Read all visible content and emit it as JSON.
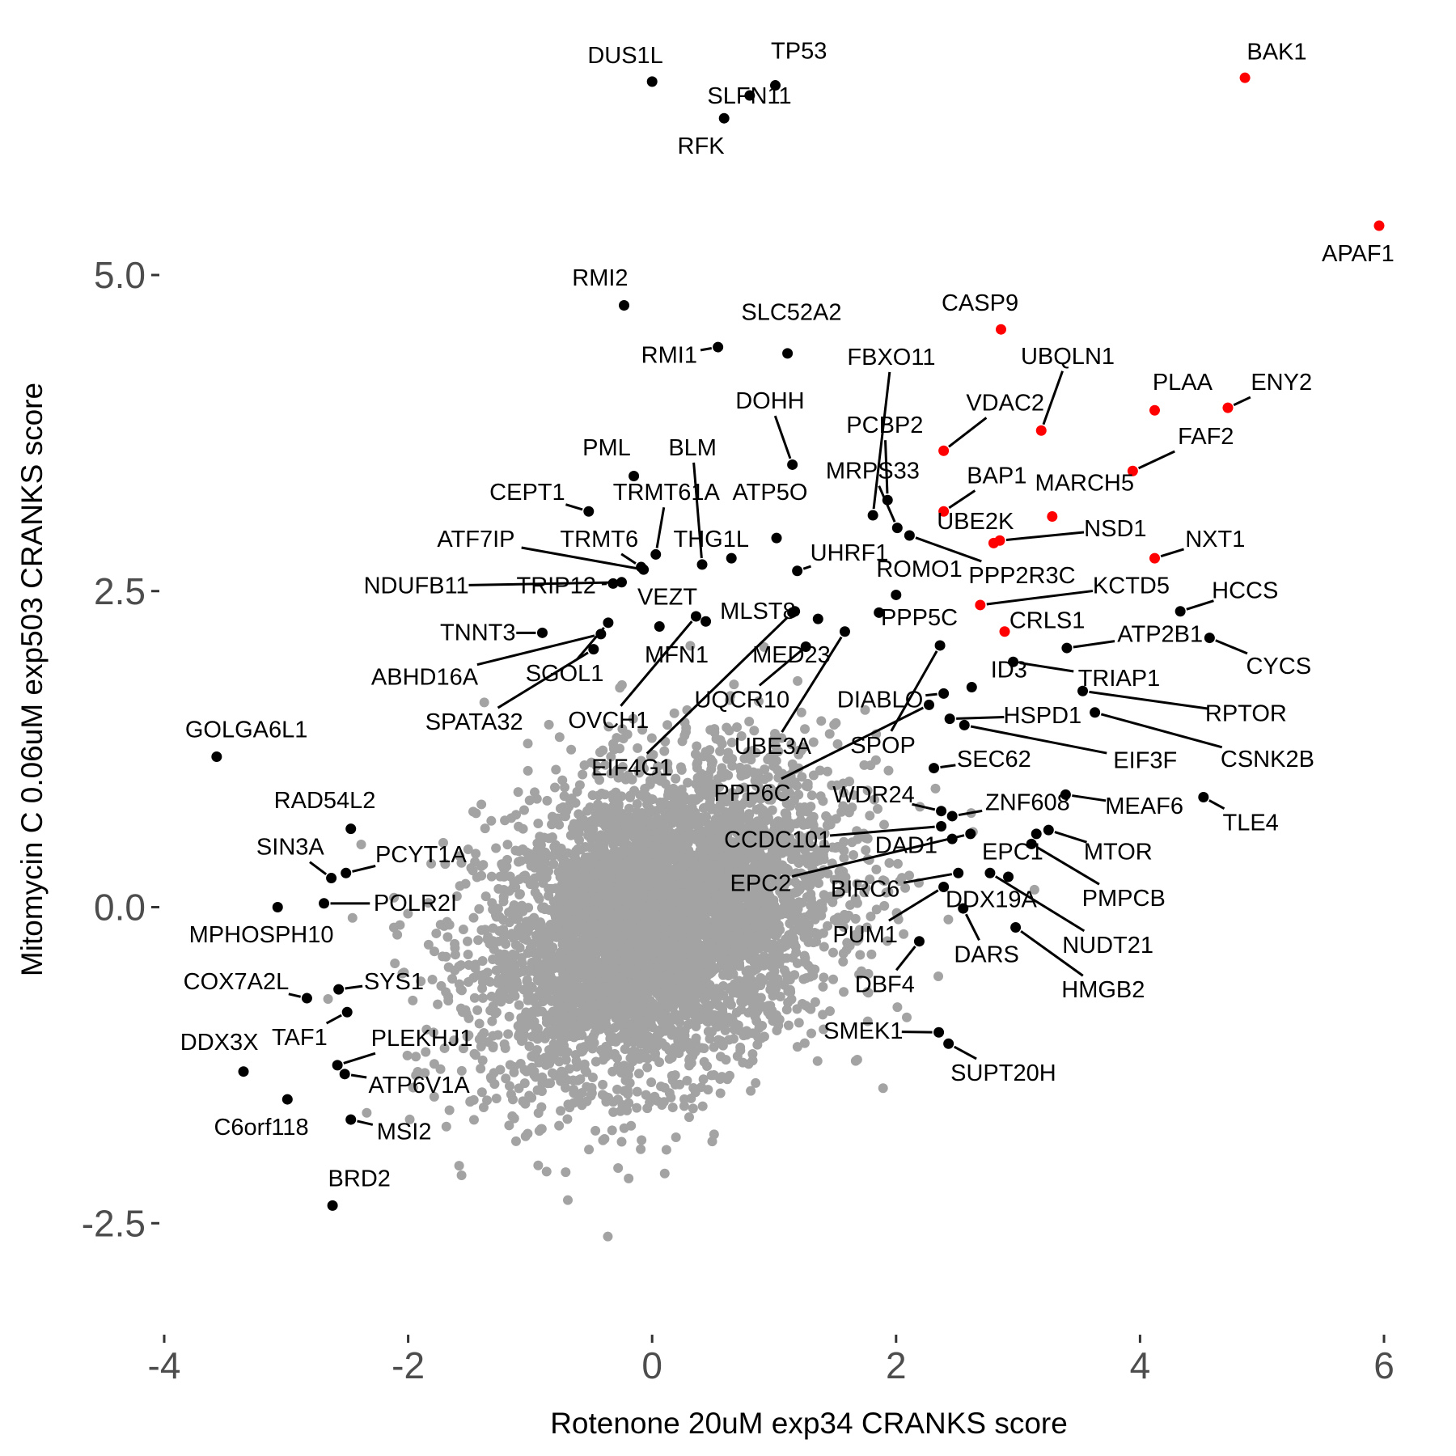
{
  "chart_data": {
    "type": "scatter",
    "xlabel": "Rotenone 20uM exp34 CRANKS score",
    "ylabel": "Mitomycin C 0.06uM exp503 CRANKS score",
    "xlim": [
      -4.2,
      6.2
    ],
    "ylim": [
      -3.3,
      6.9
    ],
    "x_ticks": [
      -4,
      -2,
      0,
      2,
      4,
      6
    ],
    "x_tick_labels": [
      "-4",
      "-2",
      "0",
      "2",
      "4",
      "6"
    ],
    "y_ticks": [
      -2.5,
      0,
      2.5,
      5
    ],
    "y_tick_labels": [
      "-2.5",
      "0.0",
      "2.5",
      "5.0"
    ],
    "grid": false,
    "colors": {
      "background_points": "#a3a3a3",
      "labeled": "#000000",
      "highlight": "#ff0000"
    },
    "background": {
      "n": 5000,
      "mean": [
        0.05,
        -0.12
      ],
      "sd": [
        0.72,
        0.62
      ],
      "rho": 0.3
    },
    "labeled_points": [
      {
        "gene": "DUS1L",
        "x": 0.0,
        "y": 6.53
      },
      {
        "gene": "TP53",
        "x": 1.01,
        "y": 6.5
      },
      {
        "gene": "SLFN11",
        "x": 0.8,
        "y": 6.42
      },
      {
        "gene": "RFK",
        "x": 0.59,
        "y": 6.24
      },
      {
        "gene": "BAK1",
        "x": 4.86,
        "y": 6.56,
        "hit": true
      },
      {
        "gene": "APAF1",
        "x": 5.96,
        "y": 5.39,
        "hit": true
      },
      {
        "gene": "RMI2",
        "x": -0.23,
        "y": 4.76
      },
      {
        "gene": "SLC52A2",
        "x": 1.11,
        "y": 4.38
      },
      {
        "gene": "RMI1",
        "x": 0.54,
        "y": 4.43
      },
      {
        "gene": "CASP9",
        "x": 2.86,
        "y": 4.57,
        "hit": true
      },
      {
        "gene": "FBXO11",
        "x": 1.81,
        "y": 3.1
      },
      {
        "gene": "UBQLN1",
        "x": 3.19,
        "y": 3.77,
        "hit": true
      },
      {
        "gene": "DOHH",
        "x": 1.15,
        "y": 3.5
      },
      {
        "gene": "VDAC2",
        "x": 2.39,
        "y": 3.61,
        "hit": true
      },
      {
        "gene": "PLAA",
        "x": 4.12,
        "y": 3.93,
        "hit": true
      },
      {
        "gene": "ENY2",
        "x": 4.72,
        "y": 3.95,
        "hit": true
      },
      {
        "gene": "FAF2",
        "x": 3.94,
        "y": 3.45,
        "hit": true
      },
      {
        "gene": "PCBP2",
        "x": 1.93,
        "y": 3.22
      },
      {
        "gene": "MRPS33",
        "x": 2.01,
        "y": 3.0
      },
      {
        "gene": "BAP1",
        "x": 2.39,
        "y": 3.13,
        "hit": true
      },
      {
        "gene": "MARCH5",
        "x": 3.28,
        "y": 3.09,
        "hit": true
      },
      {
        "gene": "PML",
        "x": -0.15,
        "y": 3.41
      },
      {
        "gene": "CEPT1",
        "x": -0.52,
        "y": 3.13
      },
      {
        "gene": "BLM",
        "x": 0.41,
        "y": 2.71
      },
      {
        "gene": "TRMT61A",
        "x": 0.03,
        "y": 2.79
      },
      {
        "gene": "ATP5O",
        "x": 1.02,
        "y": 2.92
      },
      {
        "gene": "THG1L",
        "x": 0.65,
        "y": 2.76
      },
      {
        "gene": "UBE2K",
        "x": 2.8,
        "y": 2.88,
        "hit": true
      },
      {
        "gene": "NSD1",
        "x": 2.85,
        "y": 2.9,
        "hit": true
      },
      {
        "gene": "NXT1",
        "x": 4.12,
        "y": 2.76,
        "hit": true
      },
      {
        "gene": "ATF7IP",
        "x": -0.07,
        "y": 2.67
      },
      {
        "gene": "TRMT6",
        "x": -0.09,
        "y": 2.69
      },
      {
        "gene": "UHRF1",
        "x": 1.19,
        "y": 2.66
      },
      {
        "gene": "ROMO1",
        "x": 2.0,
        "y": 2.47
      },
      {
        "gene": "PPP2R3C",
        "x": 2.11,
        "y": 2.94
      },
      {
        "gene": "KCTD5",
        "x": 2.69,
        "y": 2.39,
        "hit": true
      },
      {
        "gene": "HCCS",
        "x": 4.33,
        "y": 2.34
      },
      {
        "gene": "NDUFB11",
        "x": -0.25,
        "y": 2.57
      },
      {
        "gene": "TRIP12",
        "x": -0.32,
        "y": 2.56
      },
      {
        "gene": "VEZT",
        "x": 0.06,
        "y": 2.22
      },
      {
        "gene": "MLST8",
        "x": 1.17,
        "y": 2.34
      },
      {
        "gene": "PPP5C",
        "x": 1.86,
        "y": 2.33
      },
      {
        "gene": "CRLS1",
        "x": 2.89,
        "y": 2.18,
        "hit": true
      },
      {
        "gene": "TNNT3",
        "x": -0.9,
        "y": 2.17
      },
      {
        "gene": "ATP2B1",
        "x": 3.4,
        "y": 2.05
      },
      {
        "gene": "CYCS",
        "x": 4.57,
        "y": 2.13
      },
      {
        "gene": "MFN1",
        "x": 0.44,
        "y": 2.26
      },
      {
        "gene": "MED23",
        "x": 1.36,
        "y": 2.28
      },
      {
        "gene": "ID3",
        "x": 2.62,
        "y": 1.74
      },
      {
        "gene": "TRIAP1",
        "x": 2.96,
        "y": 1.94
      },
      {
        "gene": "ABHD16A",
        "x": -0.42,
        "y": 2.16
      },
      {
        "gene": "SGOL1",
        "x": -0.36,
        "y": 2.25
      },
      {
        "gene": "RPTOR",
        "x": 3.53,
        "y": 1.71
      },
      {
        "gene": "UQCR10",
        "x": 1.26,
        "y": 2.06
      },
      {
        "gene": "DIABLO",
        "x": 2.39,
        "y": 1.69
      },
      {
        "gene": "OVCH1",
        "x": 0.36,
        "y": 2.3
      },
      {
        "gene": "SPATA32",
        "x": -0.48,
        "y": 2.04
      },
      {
        "gene": "HSPD1",
        "x": 2.44,
        "y": 1.49
      },
      {
        "gene": "EIF3F",
        "x": 2.56,
        "y": 1.44
      },
      {
        "gene": "GOLGA6L1",
        "x": -3.57,
        "y": 1.19
      },
      {
        "gene": "UBE3A",
        "x": 1.58,
        "y": 2.18
      },
      {
        "gene": "SPOP",
        "x": 2.36,
        "y": 2.07
      },
      {
        "gene": "SEC62",
        "x": 2.31,
        "y": 1.1
      },
      {
        "gene": "CSNK2B",
        "x": 3.63,
        "y": 1.54
      },
      {
        "gene": "EIF4G1",
        "x": 1.15,
        "y": 2.33
      },
      {
        "gene": "RAD54L2",
        "x": -2.47,
        "y": 0.62
      },
      {
        "gene": "PPP6C",
        "x": 2.27,
        "y": 1.6
      },
      {
        "gene": "WDR24",
        "x": 2.37,
        "y": 0.76
      },
      {
        "gene": "ZNF608",
        "x": 2.46,
        "y": 0.72
      },
      {
        "gene": "MEAF6",
        "x": 3.39,
        "y": 0.89
      },
      {
        "gene": "TLE4",
        "x": 4.52,
        "y": 0.87
      },
      {
        "gene": "SIN3A",
        "x": -2.63,
        "y": 0.23
      },
      {
        "gene": "PCYT1A",
        "x": -2.51,
        "y": 0.27
      },
      {
        "gene": "CCDC101",
        "x": 2.37,
        "y": 0.64
      },
      {
        "gene": "DAD1",
        "x": 2.46,
        "y": 0.54
      },
      {
        "gene": "EPC1",
        "x": 3.15,
        "y": 0.58
      },
      {
        "gene": "MTOR",
        "x": 3.25,
        "y": 0.61
      },
      {
        "gene": "EPC2",
        "x": 2.61,
        "y": 0.58
      },
      {
        "gene": "BIRC6",
        "x": 2.51,
        "y": 0.27
      },
      {
        "gene": "PMPCB",
        "x": 3.11,
        "y": 0.5
      },
      {
        "gene": "POLR2I",
        "x": -2.69,
        "y": 0.03
      },
      {
        "gene": "DDX19A",
        "x": 2.92,
        "y": 0.24
      },
      {
        "gene": "MPHOSPH10",
        "x": -3.07,
        "y": 0.0
      },
      {
        "gene": "PUM1",
        "x": 2.39,
        "y": 0.16
      },
      {
        "gene": "NUDT21",
        "x": 2.77,
        "y": 0.27
      },
      {
        "gene": "DARS",
        "x": 2.55,
        "y": -0.01
      },
      {
        "gene": "COX7A2L",
        "x": -2.83,
        "y": -0.72
      },
      {
        "gene": "SYS1",
        "x": -2.57,
        "y": -0.65
      },
      {
        "gene": "DBF4",
        "x": 2.19,
        "y": -0.27
      },
      {
        "gene": "HMGB2",
        "x": 2.98,
        "y": -0.16
      },
      {
        "gene": "SMEK1",
        "x": 2.35,
        "y": -0.99
      },
      {
        "gene": "TAF1",
        "x": -2.5,
        "y": -0.83
      },
      {
        "gene": "DDX3X",
        "x": -3.35,
        "y": -1.3
      },
      {
        "gene": "PLEKHJ1",
        "x": -2.58,
        "y": -1.25
      },
      {
        "gene": "ATP6V1A",
        "x": -2.52,
        "y": -1.32
      },
      {
        "gene": "SUPT20H",
        "x": 2.43,
        "y": -1.08
      },
      {
        "gene": "C6orf118",
        "x": -2.99,
        "y": -1.52
      },
      {
        "gene": "MSI2",
        "x": -2.47,
        "y": -1.68
      },
      {
        "gene": "BRD2",
        "x": -2.62,
        "y": -2.36
      }
    ]
  }
}
